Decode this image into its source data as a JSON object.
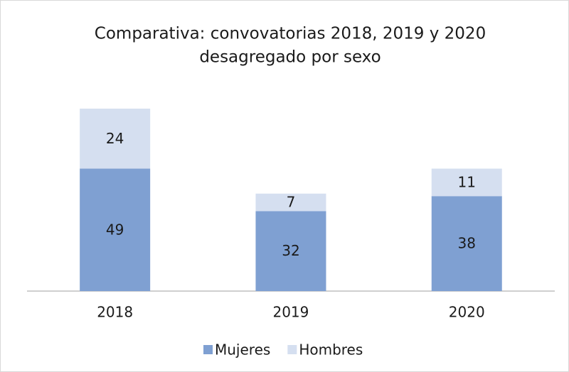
{
  "chart_data": {
    "type": "stacked_bar",
    "title": [
      "Comparativa: convovatorias 2018, 2019 y 2020",
      "desagregado por sexo"
    ],
    "categories": [
      "2018",
      "2019",
      "2020"
    ],
    "series": [
      {
        "name": "Mujeres",
        "color": "#7fa0d2",
        "values": [
          49,
          32,
          38
        ]
      },
      {
        "name": "Hombres",
        "color": "#d5dff0",
        "values": [
          24,
          7,
          11
        ]
      }
    ],
    "legend": "bottom"
  }
}
